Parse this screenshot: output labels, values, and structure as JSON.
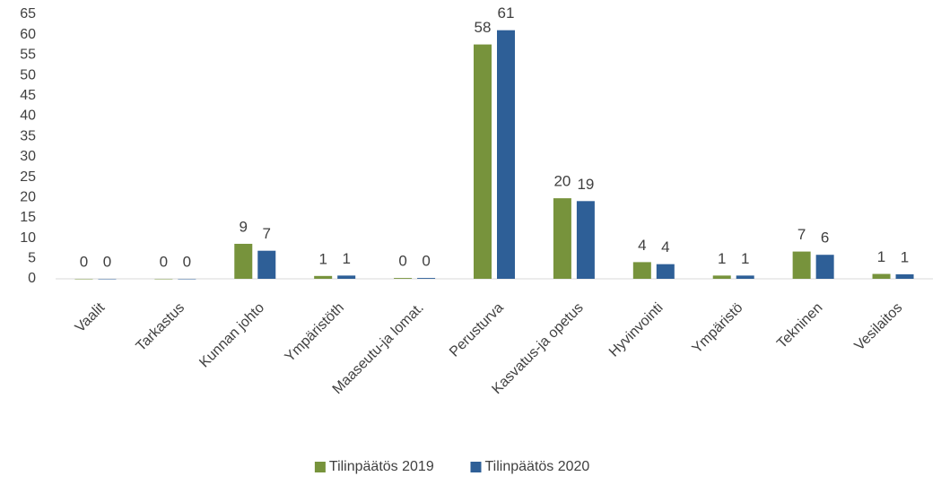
{
  "chart_data": {
    "type": "bar",
    "categories": [
      "Vaalit",
      "Tarkastus",
      "Kunnan johto",
      "Ympäristöth",
      "Maaseutu-ja lomat.",
      "Perusturva",
      "Kasvatus-ja opetus",
      "Hyvinvointi",
      "Ympäristö",
      "Tekninen",
      "Vesilaitos"
    ],
    "series": [
      {
        "name": "Tilinpäätös 2019",
        "color": "#77933c",
        "values": [
          0,
          0,
          8.6,
          0.7,
          0.2,
          57.6,
          19.8,
          4.1,
          0.8,
          6.7,
          1.2
        ],
        "value_labels": [
          "0",
          "0",
          "9",
          "1",
          "0",
          "58",
          "20",
          "4",
          "1",
          "7",
          "1"
        ]
      },
      {
        "name": "Tilinpäätös 2020",
        "color": "#2e5f97",
        "values": [
          0,
          0,
          6.9,
          0.8,
          0.2,
          61.1,
          19.1,
          3.6,
          0.8,
          5.9,
          1.1
        ],
        "value_labels": [
          "0",
          "0",
          "7",
          "1",
          "0",
          "61",
          "19",
          "4",
          "1",
          "6",
          "1"
        ]
      }
    ],
    "ylim": [
      0,
      65
    ],
    "yticks": [
      0,
      5,
      10,
      15,
      20,
      25,
      30,
      35,
      40,
      45,
      50,
      55,
      60,
      65
    ],
    "legend": "bottom"
  }
}
